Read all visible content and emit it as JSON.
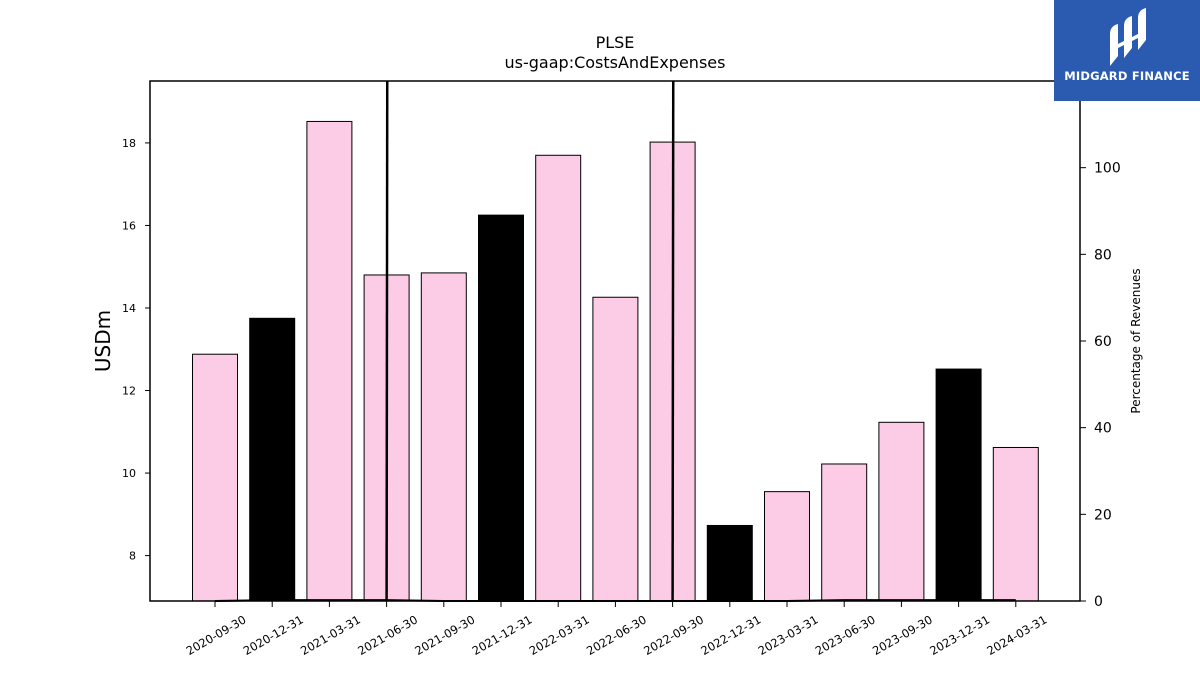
{
  "chart_data": {
    "type": "bar",
    "title": "PLSE",
    "subtitle": "us-gaap:CostsAndExpenses",
    "ylabel": "USDm",
    "y2label": "Percentage of Revenues",
    "categories": [
      "2020-09-30",
      "2020-12-31",
      "2021-03-31",
      "2021-06-30",
      "2021-09-30",
      "2021-12-31",
      "2022-03-31",
      "2022-06-30",
      "2022-09-30",
      "2022-12-31",
      "2023-03-31",
      "2023-06-30",
      "2023-09-30",
      "2023-12-31",
      "2024-03-31"
    ],
    "values": [
      12.88,
      13.75,
      18.52,
      14.8,
      14.85,
      16.25,
      17.7,
      14.26,
      18.02,
      8.73,
      9.55,
      10.22,
      11.23,
      12.52,
      10.62
    ],
    "bar_colors": [
      "#fccce6",
      "#000000",
      "#fccce6",
      "#fccce6",
      "#fccce6",
      "#000000",
      "#fccce6",
      "#fccce6",
      "#fccce6",
      "#000000",
      "#fccce6",
      "#fccce6",
      "#fccce6",
      "#000000",
      "#fccce6"
    ],
    "secondary_series": {
      "values": [
        0,
        0.2,
        0.2,
        0.2,
        0,
        0,
        0,
        0,
        0,
        0,
        0,
        0.2,
        0.2,
        0.2,
        0.2
      ],
      "spikes": [
        {
          "after_index": 2,
          "to_index": 3
        },
        {
          "after_index": 7,
          "to_index": 8
        }
      ]
    },
    "ylim": [
      6.9,
      19.5
    ],
    "y2lim": [
      0,
      120
    ],
    "yticks": [
      8,
      10,
      12,
      14,
      16,
      18
    ],
    "y2ticks": [
      0,
      20,
      40,
      60,
      80,
      100
    ],
    "grid": false,
    "legend": "none"
  },
  "logo": {
    "name": "midgard-finance-logo",
    "text": "MIDGARD FINANCE"
  }
}
